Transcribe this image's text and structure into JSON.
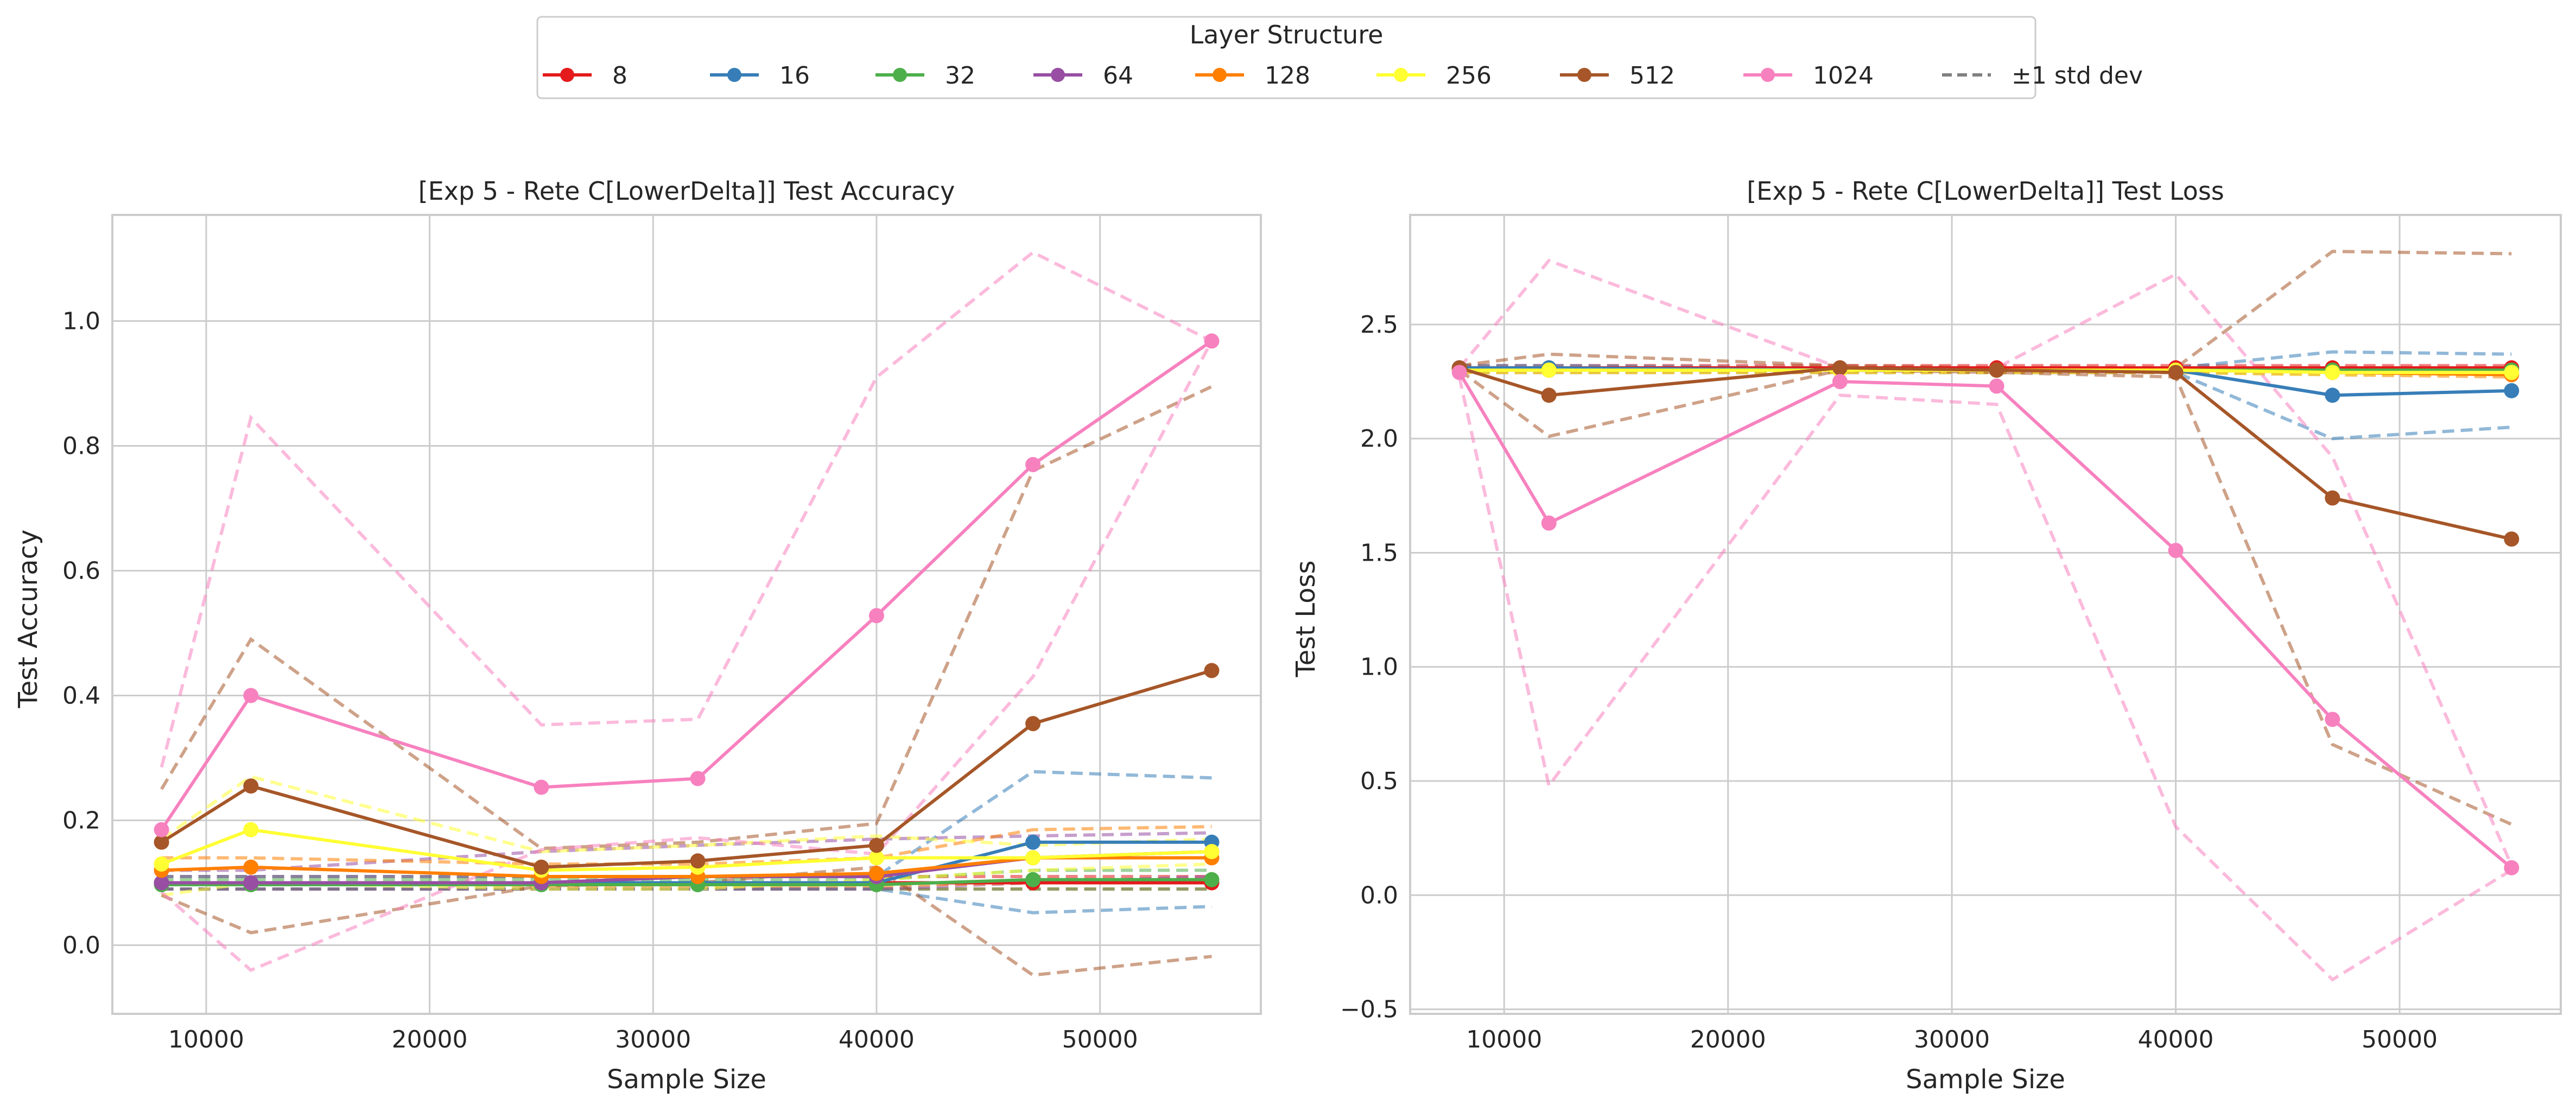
{
  "legend": {
    "title": "Layer Structure",
    "entries": [
      {
        "label": "8",
        "color": "#e41a1c",
        "style": "solid"
      },
      {
        "label": "16",
        "color": "#377eb8",
        "style": "solid"
      },
      {
        "label": "32",
        "color": "#4daf4a",
        "style": "solid"
      },
      {
        "label": "64",
        "color": "#984ea3",
        "style": "solid"
      },
      {
        "label": "128",
        "color": "#ff7f00",
        "style": "solid"
      },
      {
        "label": "256",
        "color": "#ffff33",
        "style": "solid"
      },
      {
        "label": "512",
        "color": "#a65628",
        "style": "solid"
      },
      {
        "label": "1024",
        "color": "#f781bf",
        "style": "solid"
      },
      {
        "label": "±1 std dev",
        "color": "#808080",
        "style": "dashed"
      }
    ]
  },
  "chart_data": [
    {
      "type": "line",
      "title": "[Exp 5 - Rete C[LowerDelta]] Test Accuracy",
      "xlabel": "Sample Size",
      "ylabel": "Test Accuracy",
      "xlim": [
        5800,
        57200
      ],
      "ylim": [
        -0.11,
        1.17
      ],
      "xticks": [
        10000,
        20000,
        30000,
        40000,
        50000
      ],
      "xtick_labels": [
        "10000",
        "20000",
        "30000",
        "40000",
        "50000"
      ],
      "yticks": [
        0.0,
        0.2,
        0.4,
        0.6,
        0.8,
        1.0
      ],
      "ytick_labels": [
        "0.0",
        "0.2",
        "0.4",
        "0.6",
        "0.8",
        "1.0"
      ],
      "grid": true,
      "x": [
        8000,
        12000,
        25000,
        32000,
        40000,
        47000,
        55000
      ],
      "series": [
        {
          "name": "8",
          "color": "#e41a1c",
          "mean": [
            0.1,
            0.1,
            0.1,
            0.1,
            0.1,
            0.1,
            0.1
          ],
          "upper": [
            0.11,
            0.11,
            0.11,
            0.11,
            0.11,
            0.11,
            0.11
          ],
          "lower": [
            0.09,
            0.09,
            0.09,
            0.09,
            0.09,
            0.09,
            0.09
          ]
        },
        {
          "name": "16",
          "color": "#377eb8",
          "mean": [
            0.1,
            0.1,
            0.1,
            0.1,
            0.1,
            0.165,
            0.165
          ],
          "upper": [
            0.11,
            0.11,
            0.11,
            0.11,
            0.11,
            0.278,
            0.268
          ],
          "lower": [
            0.09,
            0.09,
            0.09,
            0.09,
            0.09,
            0.052,
            0.062
          ]
        },
        {
          "name": "32",
          "color": "#4daf4a",
          "mean": [
            0.097,
            0.097,
            0.097,
            0.097,
            0.097,
            0.105,
            0.105
          ],
          "upper": [
            0.105,
            0.105,
            0.105,
            0.105,
            0.105,
            0.12,
            0.12
          ],
          "lower": [
            0.09,
            0.09,
            0.09,
            0.09,
            0.09,
            0.09,
            0.09
          ]
        },
        {
          "name": "64",
          "color": "#984ea3",
          "mean": [
            0.1,
            0.1,
            0.1,
            0.11,
            0.11,
            0.14,
            0.15
          ],
          "upper": [
            0.12,
            0.12,
            0.15,
            0.16,
            0.17,
            0.175,
            0.18
          ],
          "lower": [
            0.09,
            0.09,
            0.09,
            0.09,
            0.09,
            0.1,
            0.11
          ]
        },
        {
          "name": "128",
          "color": "#ff7f00",
          "mean": [
            0.12,
            0.125,
            0.11,
            0.11,
            0.115,
            0.14,
            0.14
          ],
          "upper": [
            0.14,
            0.14,
            0.13,
            0.13,
            0.14,
            0.185,
            0.19
          ],
          "lower": [
            0.1,
            0.1,
            0.095,
            0.095,
            0.095,
            0.1,
            0.1
          ]
        },
        {
          "name": "256",
          "color": "#ffff33",
          "mean": [
            0.13,
            0.185,
            0.12,
            0.125,
            0.14,
            0.14,
            0.15
          ],
          "upper": [
            0.17,
            0.27,
            0.15,
            0.16,
            0.175,
            0.16,
            0.17
          ],
          "lower": [
            0.08,
            0.1,
            0.09,
            0.09,
            0.105,
            0.12,
            0.13
          ]
        },
        {
          "name": "512",
          "color": "#a65628",
          "mean": [
            0.165,
            0.255,
            0.125,
            0.135,
            0.16,
            0.355,
            0.44
          ],
          "upper": [
            0.25,
            0.49,
            0.155,
            0.165,
            0.195,
            0.76,
            0.895
          ],
          "lower": [
            0.08,
            0.02,
            0.095,
            0.1,
            0.125,
            -0.048,
            -0.018
          ]
        },
        {
          "name": "1024",
          "color": "#f781bf",
          "mean": [
            0.185,
            0.4,
            0.253,
            0.267,
            0.528,
            0.77,
            0.968
          ],
          "upper": [
            0.285,
            0.845,
            0.353,
            0.362,
            0.91,
            1.11,
            0.968
          ],
          "lower": [
            0.085,
            -0.04,
            0.153,
            0.172,
            0.146,
            0.43,
            0.968
          ]
        }
      ]
    },
    {
      "type": "line",
      "title": "[Exp 5 - Rete C[LowerDelta]] Test Loss",
      "xlabel": "Sample Size",
      "ylabel": "Test Loss",
      "xlim": [
        5800,
        57200
      ],
      "ylim": [
        -0.52,
        2.98
      ],
      "xticks": [
        10000,
        20000,
        30000,
        40000,
        50000
      ],
      "xtick_labels": [
        "10000",
        "20000",
        "30000",
        "40000",
        "50000"
      ],
      "yticks": [
        -0.5,
        0.0,
        0.5,
        1.0,
        1.5,
        2.0,
        2.5
      ],
      "ytick_labels": [
        "−0.5",
        "0.0",
        "0.5",
        "1.0",
        "1.5",
        "2.0",
        "2.5"
      ],
      "grid": true,
      "x": [
        8000,
        12000,
        25000,
        32000,
        40000,
        47000,
        55000
      ],
      "series": [
        {
          "name": "8",
          "color": "#e41a1c",
          "mean": [
            2.31,
            2.31,
            2.31,
            2.31,
            2.31,
            2.31,
            2.31
          ],
          "upper": [
            2.32,
            2.32,
            2.32,
            2.32,
            2.32,
            2.32,
            2.32
          ],
          "lower": [
            2.3,
            2.3,
            2.3,
            2.3,
            2.3,
            2.3,
            2.3
          ]
        },
        {
          "name": "16",
          "color": "#377eb8",
          "mean": [
            2.31,
            2.31,
            2.3,
            2.3,
            2.3,
            2.19,
            2.21
          ],
          "upper": [
            2.32,
            2.32,
            2.31,
            2.31,
            2.31,
            2.38,
            2.37
          ],
          "lower": [
            2.3,
            2.3,
            2.29,
            2.29,
            2.29,
            2.0,
            2.05
          ]
        },
        {
          "name": "32",
          "color": "#4daf4a",
          "mean": [
            2.3,
            2.3,
            2.3,
            2.3,
            2.3,
            2.3,
            2.3
          ],
          "upper": [
            2.31,
            2.31,
            2.31,
            2.31,
            2.31,
            2.31,
            2.31
          ],
          "lower": [
            2.29,
            2.29,
            2.29,
            2.29,
            2.29,
            2.29,
            2.29
          ]
        },
        {
          "name": "64",
          "color": "#984ea3",
          "mean": [
            2.3,
            2.3,
            2.3,
            2.3,
            2.3,
            2.29,
            2.29
          ],
          "upper": [
            2.31,
            2.31,
            2.31,
            2.31,
            2.31,
            2.3,
            2.3
          ],
          "lower": [
            2.29,
            2.29,
            2.29,
            2.29,
            2.29,
            2.28,
            2.28
          ]
        },
        {
          "name": "128",
          "color": "#ff7f00",
          "mean": [
            2.3,
            2.3,
            2.3,
            2.3,
            2.3,
            2.29,
            2.28
          ],
          "upper": [
            2.31,
            2.31,
            2.31,
            2.31,
            2.31,
            2.3,
            2.29
          ],
          "lower": [
            2.29,
            2.29,
            2.29,
            2.29,
            2.29,
            2.28,
            2.27
          ]
        },
        {
          "name": "256",
          "color": "#ffff33",
          "mean": [
            2.3,
            2.3,
            2.3,
            2.3,
            2.3,
            2.29,
            2.29
          ],
          "upper": [
            2.31,
            2.31,
            2.31,
            2.31,
            2.31,
            2.3,
            2.3
          ],
          "lower": [
            2.29,
            2.29,
            2.29,
            2.29,
            2.29,
            2.28,
            2.28
          ]
        },
        {
          "name": "512",
          "color": "#a65628",
          "mean": [
            2.31,
            2.19,
            2.31,
            2.3,
            2.29,
            1.74,
            1.56
          ],
          "upper": [
            2.32,
            2.37,
            2.32,
            2.31,
            2.31,
            2.82,
            2.81
          ],
          "lower": [
            2.3,
            2.01,
            2.3,
            2.29,
            2.27,
            0.66,
            0.31
          ]
        },
        {
          "name": "1024",
          "color": "#f781bf",
          "mean": [
            2.29,
            1.63,
            2.25,
            2.23,
            1.51,
            0.77,
            0.12
          ],
          "upper": [
            2.31,
            2.78,
            2.31,
            2.31,
            2.72,
            1.92,
            0.13
          ],
          "lower": [
            2.27,
            0.48,
            2.19,
            2.15,
            0.3,
            -0.37,
            0.11
          ]
        }
      ]
    }
  ]
}
